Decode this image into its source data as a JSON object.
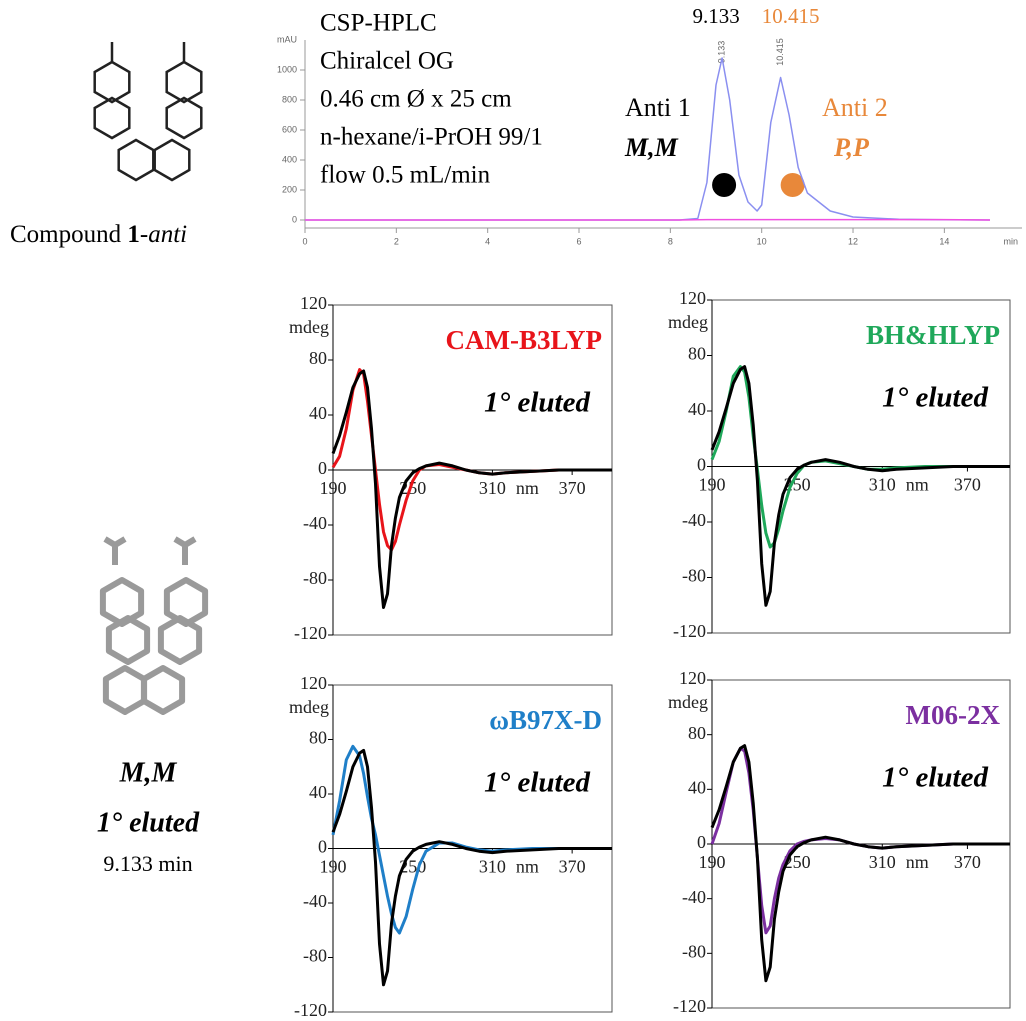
{
  "compound_label": {
    "prefix": "Compound ",
    "number": "1",
    "suffix": "-anti"
  },
  "structure_labels": {
    "configuration": "M,M",
    "elution": "1° eluted",
    "retention": "9.133 min"
  },
  "chart_data": [
    {
      "type": "line",
      "xlabel": "min",
      "ylabel": "mAU",
      "annotations": [
        "CSP-HPLC",
        "Chiralcel OG",
        "0.46 cm Ø x 25 cm",
        "n-hexane/i-PrOH 99/1",
        "flow 0.5 mL/min"
      ],
      "peaks": [
        {
          "x": 9.133,
          "color": "#000000"
        },
        {
          "x": 10.415,
          "color": "#e8883a"
        }
      ],
      "enantiomers": [
        {
          "name": "Anti 1",
          "config": "M,M",
          "color": "#000000"
        },
        {
          "name": "Anti 2",
          "config": "P,P",
          "color": "#e8883a"
        }
      ],
      "x": [
        0,
        8.2,
        8.6,
        8.8,
        9.0,
        9.133,
        9.3,
        9.5,
        9.7,
        9.9,
        10.0,
        10.2,
        10.415,
        10.6,
        10.8,
        11.0,
        11.5,
        12,
        13,
        14,
        15
      ],
      "series": [
        {
          "color": "#8a8ff0",
          "values": [
            0,
            0,
            10,
            250,
            900,
            1080,
            800,
            300,
            120,
            60,
            100,
            650,
            950,
            700,
            350,
            180,
            60,
            20,
            5,
            2,
            0
          ]
        },
        {
          "color": "#f050e0",
          "values": [
            0,
            0,
            2,
            3,
            3,
            3,
            3,
            3,
            3,
            3,
            3,
            3,
            3,
            3,
            3,
            3,
            3,
            3,
            3,
            3,
            0
          ]
        }
      ],
      "xlim": [
        0,
        15.7
      ],
      "ylim": [
        -80,
        1200
      ],
      "xticks": [
        0,
        2,
        4,
        6,
        8,
        10,
        12,
        14
      ],
      "yticks": [
        0,
        200,
        400,
        600,
        800,
        1000
      ],
      "frame": false
    },
    {
      "type": "line",
      "xlabel": "nm",
      "ylabel": "mdeg",
      "method": "CAM-B3LYP",
      "annotation": "1° eluted",
      "x": [
        190,
        195,
        200,
        205,
        210,
        213,
        216,
        219,
        222,
        225,
        228,
        231,
        234,
        237,
        240,
        245,
        250,
        255,
        260,
        270,
        280,
        290,
        300,
        310,
        320,
        340,
        360,
        380,
        400
      ],
      "series": [
        {
          "name": "CAM-B3LYP",
          "color": "#e8141a",
          "values": [
            2,
            10,
            30,
            58,
            73,
            70,
            50,
            25,
            0,
            -25,
            -45,
            -55,
            -58,
            -52,
            -40,
            -22,
            -8,
            0,
            3,
            4,
            2,
            0,
            -2,
            -3,
            -2,
            -1,
            0,
            0,
            0
          ]
        },
        {
          "color": "#000000",
          "values": [
            12,
            25,
            42,
            60,
            70,
            72,
            60,
            30,
            -10,
            -70,
            -100,
            -90,
            -55,
            -35,
            -20,
            -8,
            -2,
            1,
            3,
            5,
            3,
            0,
            -2,
            -3,
            -2,
            -1,
            0,
            0,
            0
          ]
        }
      ],
      "xlim": [
        190,
        400
      ],
      "ylim": [
        -120,
        120
      ],
      "xticks": [
        190,
        250,
        310,
        370
      ],
      "yticks": [
        -120,
        -80,
        -40,
        0,
        40,
        80,
        120
      ],
      "frame": true
    },
    {
      "type": "line",
      "xlabel": "nm",
      "ylabel": "mdeg",
      "method": "BH&HLYP",
      "annotation": "1° eluted",
      "x": [
        190,
        195,
        200,
        205,
        210,
        213,
        216,
        219,
        222,
        225,
        228,
        231,
        234,
        237,
        240,
        245,
        250,
        255,
        260,
        270,
        280,
        290,
        300,
        310,
        320,
        340,
        360,
        380,
        400
      ],
      "series": [
        {
          "name": "BH&HLYP",
          "color": "#1fa85a",
          "values": [
            5,
            18,
            40,
            65,
            72,
            68,
            50,
            22,
            -2,
            -28,
            -48,
            -58,
            -55,
            -45,
            -32,
            -15,
            -5,
            1,
            3,
            4,
            2,
            0,
            -2,
            -2,
            -1,
            0,
            0,
            0,
            0
          ]
        },
        {
          "color": "#000000",
          "values": [
            12,
            25,
            42,
            60,
            70,
            72,
            60,
            30,
            -10,
            -70,
            -100,
            -90,
            -55,
            -35,
            -20,
            -8,
            -2,
            1,
            3,
            5,
            3,
            0,
            -2,
            -3,
            -2,
            -1,
            0,
            0,
            0
          ]
        }
      ],
      "xlim": [
        190,
        400
      ],
      "ylim": [
        -120,
        120
      ],
      "xticks": [
        190,
        250,
        310,
        370
      ],
      "yticks": [
        -120,
        -80,
        -40,
        0,
        40,
        80,
        120
      ],
      "frame": true
    },
    {
      "type": "line",
      "xlabel": "nm",
      "ylabel": "mdeg",
      "method": "ωB97X-D",
      "annotation": "1° eluted",
      "x": [
        190,
        195,
        200,
        205,
        210,
        213,
        216,
        219,
        222,
        225,
        228,
        231,
        234,
        237,
        240,
        245,
        250,
        255,
        260,
        270,
        280,
        290,
        300,
        310,
        320,
        340,
        360,
        380,
        400
      ],
      "series": [
        {
          "name": "ωB97X-D",
          "color": "#1f7fc8",
          "values": [
            10,
            35,
            65,
            75,
            68,
            55,
            38,
            22,
            10,
            -5,
            -20,
            -35,
            -48,
            -58,
            -62,
            -50,
            -30,
            -12,
            -2,
            4,
            4,
            1,
            -1,
            -2,
            -1,
            0,
            0,
            0,
            0
          ]
        },
        {
          "color": "#000000",
          "values": [
            12,
            25,
            42,
            60,
            70,
            72,
            60,
            30,
            -10,
            -70,
            -100,
            -90,
            -55,
            -35,
            -20,
            -8,
            -2,
            1,
            3,
            5,
            3,
            0,
            -2,
            -3,
            -2,
            -1,
            0,
            0,
            0
          ]
        }
      ],
      "xlim": [
        190,
        400
      ],
      "ylim": [
        -120,
        120
      ],
      "xticks": [
        190,
        250,
        310,
        370
      ],
      "yticks": [
        -120,
        -80,
        -40,
        0,
        40,
        80,
        120
      ],
      "frame": true
    },
    {
      "type": "line",
      "xlabel": "nm",
      "ylabel": "mdeg",
      "method": "M06-2X",
      "annotation": "1° eluted",
      "x": [
        190,
        195,
        200,
        205,
        210,
        213,
        216,
        219,
        222,
        225,
        228,
        231,
        234,
        237,
        240,
        245,
        250,
        255,
        260,
        270,
        280,
        290,
        300,
        310,
        320,
        340,
        360,
        380,
        400
      ],
      "series": [
        {
          "name": "M06-2X",
          "color": "#7b2fa0",
          "values": [
            0,
            15,
            38,
            60,
            70,
            68,
            52,
            25,
            -10,
            -45,
            -65,
            -60,
            -40,
            -25,
            -15,
            -5,
            0,
            2,
            3,
            4,
            3,
            0,
            -2,
            -3,
            -2,
            -1,
            0,
            0,
            0
          ]
        },
        {
          "color": "#000000",
          "values": [
            12,
            25,
            42,
            60,
            70,
            72,
            60,
            30,
            -10,
            -70,
            -100,
            -90,
            -55,
            -35,
            -20,
            -8,
            -2,
            1,
            3,
            5,
            3,
            0,
            -2,
            -3,
            -2,
            -1,
            0,
            0,
            0
          ]
        }
      ],
      "xlim": [
        190,
        400
      ],
      "ylim": [
        -120,
        120
      ],
      "xticks": [
        190,
        250,
        310,
        370
      ],
      "yticks": [
        -120,
        -80,
        -40,
        0,
        40,
        80,
        120
      ],
      "frame": true
    }
  ]
}
